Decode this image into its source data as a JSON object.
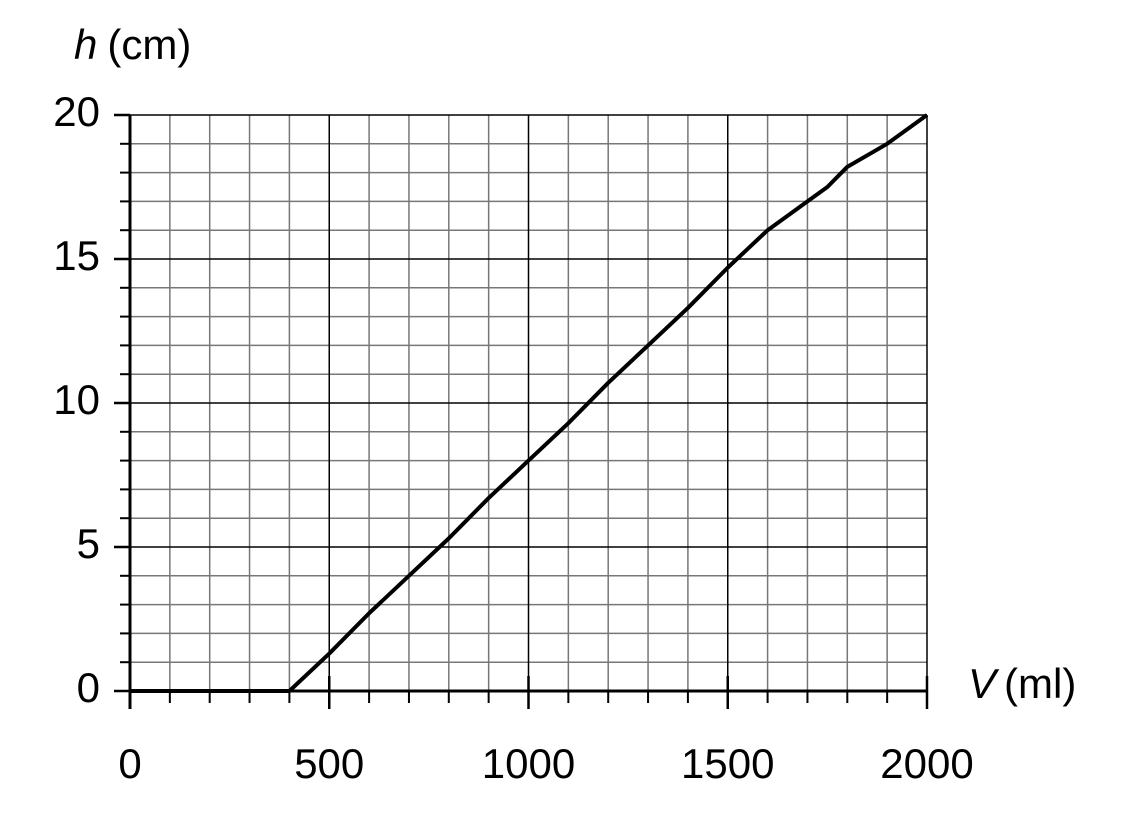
{
  "chart_data": {
    "type": "line",
    "y_label": {
      "symbol": "h",
      "unit": "(cm)"
    },
    "x_label": {
      "symbol": "V",
      "unit": "(ml)"
    },
    "x": [
      0,
      400,
      500,
      600,
      700,
      800,
      900,
      1000,
      1100,
      1200,
      1300,
      1400,
      1500,
      1600,
      1700,
      1750,
      1800,
      1900,
      2000
    ],
    "series": [
      {
        "color": "#000000",
        "values": [
          0,
          0,
          1.3,
          2.7,
          4,
          5.3,
          6.7,
          8,
          9.3,
          10.7,
          12,
          13.3,
          14.7,
          16,
          17,
          17.5,
          18.2,
          19,
          20
        ]
      }
    ],
    "xlim": [
      0,
      2000
    ],
    "ylim": [
      0,
      20
    ],
    "xticks": [
      0,
      500,
      1000,
      1500,
      2000
    ],
    "yticks": [
      0,
      5,
      10,
      15,
      20
    ],
    "xminorticks": [
      100,
      200,
      300,
      400,
      600,
      700,
      800,
      900,
      1100,
      1200,
      1300,
      1400,
      1600,
      1700,
      1800,
      1900
    ],
    "yminorticks": [
      1,
      2,
      3,
      4,
      6,
      7,
      8,
      9,
      11,
      12,
      13,
      14,
      16,
      17,
      18,
      19
    ],
    "grid": true
  }
}
